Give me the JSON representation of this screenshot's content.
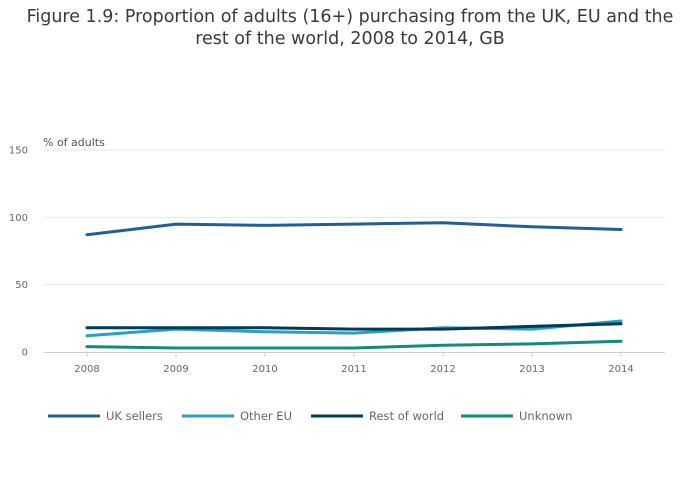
{
  "chart_data": {
    "type": "line",
    "title": "Figure 1.9: Proportion of adults (16+) purchasing from the UK, EU and the rest of the world, 2008 to 2014, GB",
    "ylabel": "% of adults",
    "xlabel": "",
    "x": [
      "2008",
      "2009",
      "2010",
      "2011",
      "2012",
      "2013",
      "2014"
    ],
    "ylim": [
      0,
      150
    ],
    "yticks": [
      0,
      50,
      100,
      150
    ],
    "grid": true,
    "legend_position": "bottom",
    "series": [
      {
        "name": "UK sellers",
        "color": "#206095",
        "values": [
          87,
          95,
          94,
          95,
          96,
          93,
          91
        ]
      },
      {
        "name": "Other EU",
        "color": "#27a0cc",
        "values": [
          12,
          17,
          15,
          14,
          18,
          17,
          23
        ]
      },
      {
        "name": "Rest of world",
        "color": "#003c57",
        "values": [
          18,
          18,
          18,
          17,
          17,
          19,
          21
        ]
      },
      {
        "name": "Unknown",
        "color": "#118c7b",
        "values": [
          4,
          3,
          3,
          3,
          5,
          6,
          8
        ]
      }
    ]
  }
}
